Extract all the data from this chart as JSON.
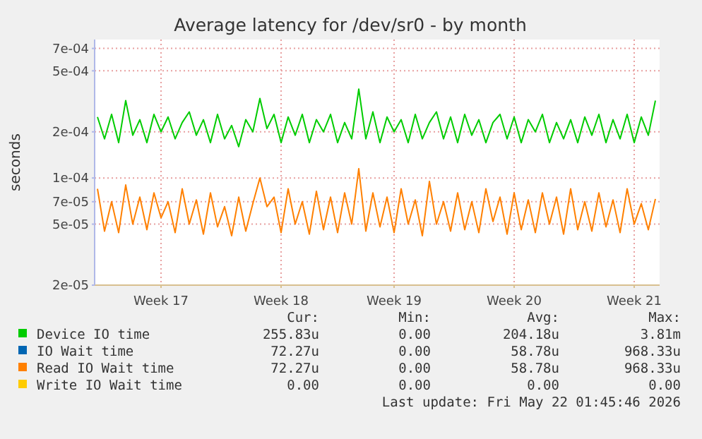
{
  "chart_data": {
    "type": "line",
    "title": "Average latency for /dev/sr0 - by month",
    "ylabel": "seconds",
    "log": "y",
    "grid": true,
    "legend": "bottom",
    "line_style": "solid",
    "categories": [
      null,
      null,
      null,
      null,
      null,
      null,
      null,
      null,
      null,
      "Week 17",
      null,
      null,
      null,
      null,
      null,
      null,
      null,
      null,
      null,
      null,
      null,
      null,
      null,
      null,
      null,
      null,
      "Week 18",
      null,
      null,
      null,
      null,
      null,
      null,
      null,
      null,
      null,
      null,
      null,
      null,
      null,
      null,
      null,
      "Week 19",
      null,
      null,
      null,
      null,
      null,
      null,
      null,
      null,
      null,
      null,
      null,
      null,
      null,
      null,
      null,
      null,
      "Week 20",
      null,
      null,
      null,
      null,
      null,
      null,
      null,
      null,
      null,
      null,
      null,
      null,
      null,
      null,
      null,
      null,
      "Week 21",
      null,
      null,
      null
    ],
    "ylim": [
      2e-05,
      0.0008
    ],
    "yticks": [
      {
        "value": 2e-05,
        "label": "2e-05"
      },
      {
        "value": 5e-05,
        "label": "5e-05"
      },
      {
        "value": 7e-05,
        "label": "7e-05"
      },
      {
        "value": 0.0001,
        "label": "1e-04"
      },
      {
        "value": 0.0002,
        "label": "2e-04"
      },
      {
        "value": 0.0005,
        "label": "5e-04"
      },
      {
        "value": 0.0007,
        "label": "7e-04"
      }
    ],
    "series": [
      {
        "name": "Device IO time",
        "color": "#00cc00",
        "values": [
          0.00025,
          0.00018,
          0.00026,
          0.00017,
          0.00032,
          0.00019,
          0.00024,
          0.00017,
          0.00026,
          0.0002,
          0.00025,
          0.00018,
          0.00023,
          0.00027,
          0.00019,
          0.00024,
          0.00017,
          0.00026,
          0.00018,
          0.00022,
          0.00016,
          0.00024,
          0.0002,
          0.00033,
          0.00021,
          0.00026,
          0.00017,
          0.00025,
          0.00019,
          0.00026,
          0.00017,
          0.00024,
          0.0002,
          0.00026,
          0.00017,
          0.00023,
          0.00018,
          0.00038,
          0.00018,
          0.00027,
          0.00017,
          0.00025,
          0.0002,
          0.00024,
          0.00017,
          0.00026,
          0.00018,
          0.00023,
          0.00027,
          0.00018,
          0.00025,
          0.00017,
          0.00026,
          0.00019,
          0.00024,
          0.00017,
          0.00023,
          0.00026,
          0.00018,
          0.00025,
          0.00017,
          0.00024,
          0.0002,
          0.00026,
          0.00017,
          0.00023,
          0.00018,
          0.00024,
          0.00017,
          0.00025,
          0.00019,
          0.00026,
          0.00017,
          0.00024,
          0.00018,
          0.00026,
          0.00017,
          0.00025,
          0.00019,
          0.00032
        ]
      },
      {
        "name": "IO Wait time",
        "color": "#0066b3",
        "values": [
          null,
          null,
          null,
          null,
          null,
          null,
          null,
          null,
          null,
          null,
          null,
          null,
          null,
          null,
          null,
          null,
          null,
          null,
          null,
          null,
          null,
          null,
          null,
          null,
          null,
          null,
          null,
          null,
          null,
          null,
          null,
          null,
          null,
          null,
          null,
          null,
          null,
          null,
          null,
          null,
          null,
          null,
          null,
          null,
          null,
          null,
          null,
          null,
          null,
          null,
          null,
          null,
          null,
          null,
          null,
          null,
          null,
          null,
          null,
          null,
          null,
          null,
          null,
          null,
          null,
          null,
          null,
          null,
          null,
          null,
          null,
          null,
          null,
          null,
          null,
          null,
          null,
          null,
          null,
          null
        ]
      },
      {
        "name": "Read IO Wait time",
        "color": "#ff8000",
        "values": [
          8.5e-05,
          4.5e-05,
          7e-05,
          4.4e-05,
          9e-05,
          5e-05,
          7.5e-05,
          4.6e-05,
          8e-05,
          5.5e-05,
          7e-05,
          4.4e-05,
          8.5e-05,
          5e-05,
          7.2e-05,
          4.3e-05,
          8e-05,
          4.8e-05,
          6.5e-05,
          4.2e-05,
          7.5e-05,
          4.5e-05,
          6.8e-05,
          0.0001,
          6.5e-05,
          7.5e-05,
          4.4e-05,
          8.5e-05,
          5e-05,
          7e-05,
          4.3e-05,
          8.2e-05,
          4.6e-05,
          7.5e-05,
          4.4e-05,
          8e-05,
          5e-05,
          0.000115,
          4.5e-05,
          8e-05,
          4.8e-05,
          7.5e-05,
          4.4e-05,
          8.5e-05,
          5e-05,
          7.2e-05,
          4.2e-05,
          9.5e-05,
          5e-05,
          7e-05,
          4.5e-05,
          8e-05,
          4.6e-05,
          7e-05,
          4.4e-05,
          8.5e-05,
          5.2e-05,
          7.5e-05,
          4.3e-05,
          8e-05,
          4.6e-05,
          7.2e-05,
          4.4e-05,
          8e-05,
          5e-05,
          7.5e-05,
          4.3e-05,
          8.5e-05,
          4.6e-05,
          7e-05,
          4.5e-05,
          8e-05,
          4.8e-05,
          7.2e-05,
          4.4e-05,
          8.5e-05,
          5e-05,
          6.8e-05,
          4.6e-05,
          7.3e-05
        ]
      },
      {
        "name": "Write IO Wait time",
        "color": "#ffcc00",
        "values": [
          null,
          null,
          null,
          null,
          null,
          null,
          null,
          null,
          null,
          null,
          null,
          null,
          null,
          null,
          null,
          null,
          null,
          null,
          null,
          null,
          null,
          null,
          null,
          null,
          null,
          null,
          null,
          null,
          null,
          null,
          null,
          null,
          null,
          null,
          null,
          null,
          null,
          null,
          null,
          null,
          null,
          null,
          null,
          null,
          null,
          null,
          null,
          null,
          null,
          null,
          null,
          null,
          null,
          null,
          null,
          null,
          null,
          null,
          null,
          null,
          null,
          null,
          null,
          null,
          null,
          null,
          null,
          null,
          null,
          null,
          null,
          null,
          null,
          null,
          null,
          null,
          null,
          null,
          null,
          null
        ]
      }
    ],
    "annotations": [
      "Cur:",
      "Min:",
      "Avg:",
      "Max:",
      "255.83u",
      "0.00",
      "204.18u",
      "3.81m",
      "72.27u",
      "0.00",
      "58.78u",
      "968.33u",
      "72.27u",
      "0.00",
      "58.78u",
      "968.33u",
      "0.00",
      "0.00",
      "0.00",
      "0.00",
      "Last update: Fri May 22 01:45:46 2026"
    ]
  }
}
